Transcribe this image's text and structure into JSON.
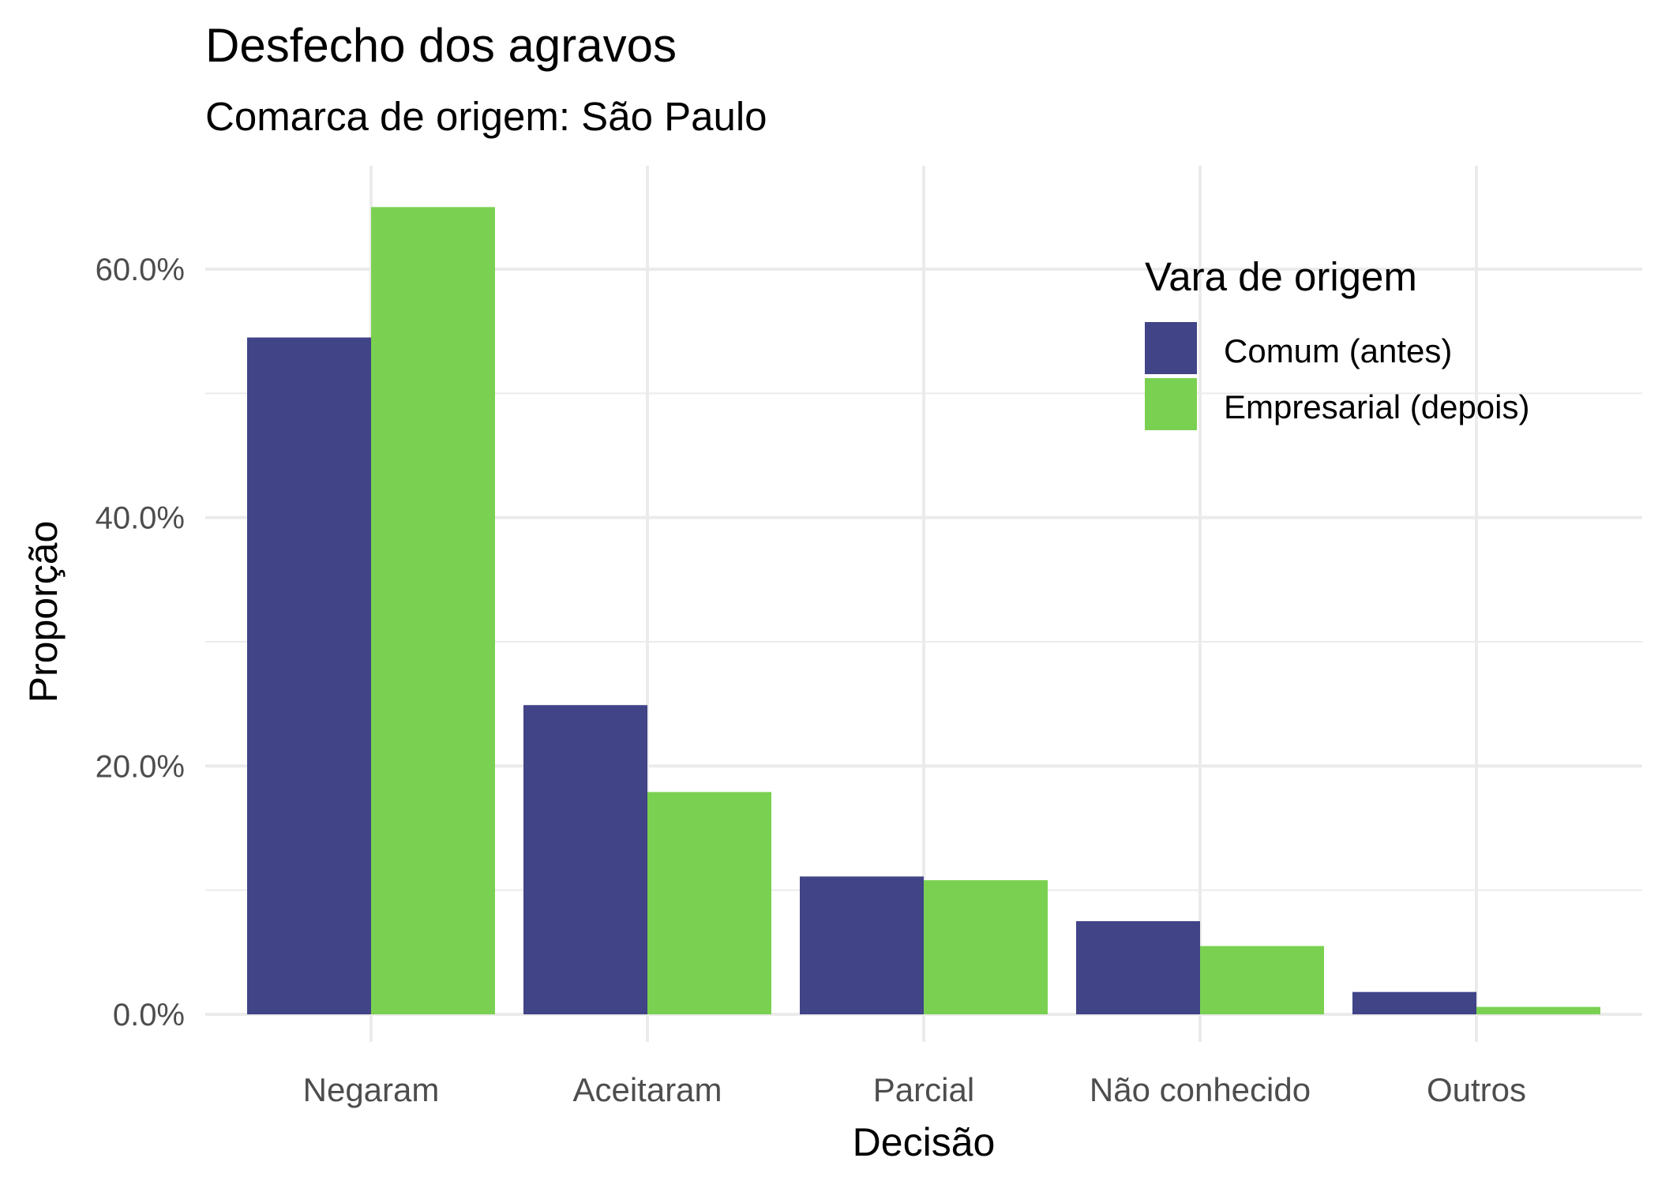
{
  "chart_data": {
    "type": "bar",
    "title": "Desfecho dos agravos",
    "subtitle": "Comarca de origem: São Paulo",
    "xlabel": "Decisão",
    "ylabel": "Proporção",
    "categories": [
      "Negaram",
      "Aceitaram",
      "Parcial",
      "Não conhecido",
      "Outros"
    ],
    "series": [
      {
        "name": "Comum (antes)",
        "color": "#414487",
        "values": [
          54.5,
          24.9,
          11.1,
          7.5,
          1.8
        ]
      },
      {
        "name": "Empresarial (depois)",
        "color": "#7AD151",
        "values": [
          65.0,
          17.9,
          10.8,
          5.5,
          0.6
        ]
      }
    ],
    "ylim": [
      0,
      67
    ],
    "yticks": [
      0,
      20,
      40,
      60
    ],
    "ytick_labels": [
      "0.0%",
      "20.0%",
      "40.0%",
      "60.0%"
    ],
    "legend": {
      "title": "Vara de origem",
      "position": "top-right"
    },
    "grid": true
  }
}
